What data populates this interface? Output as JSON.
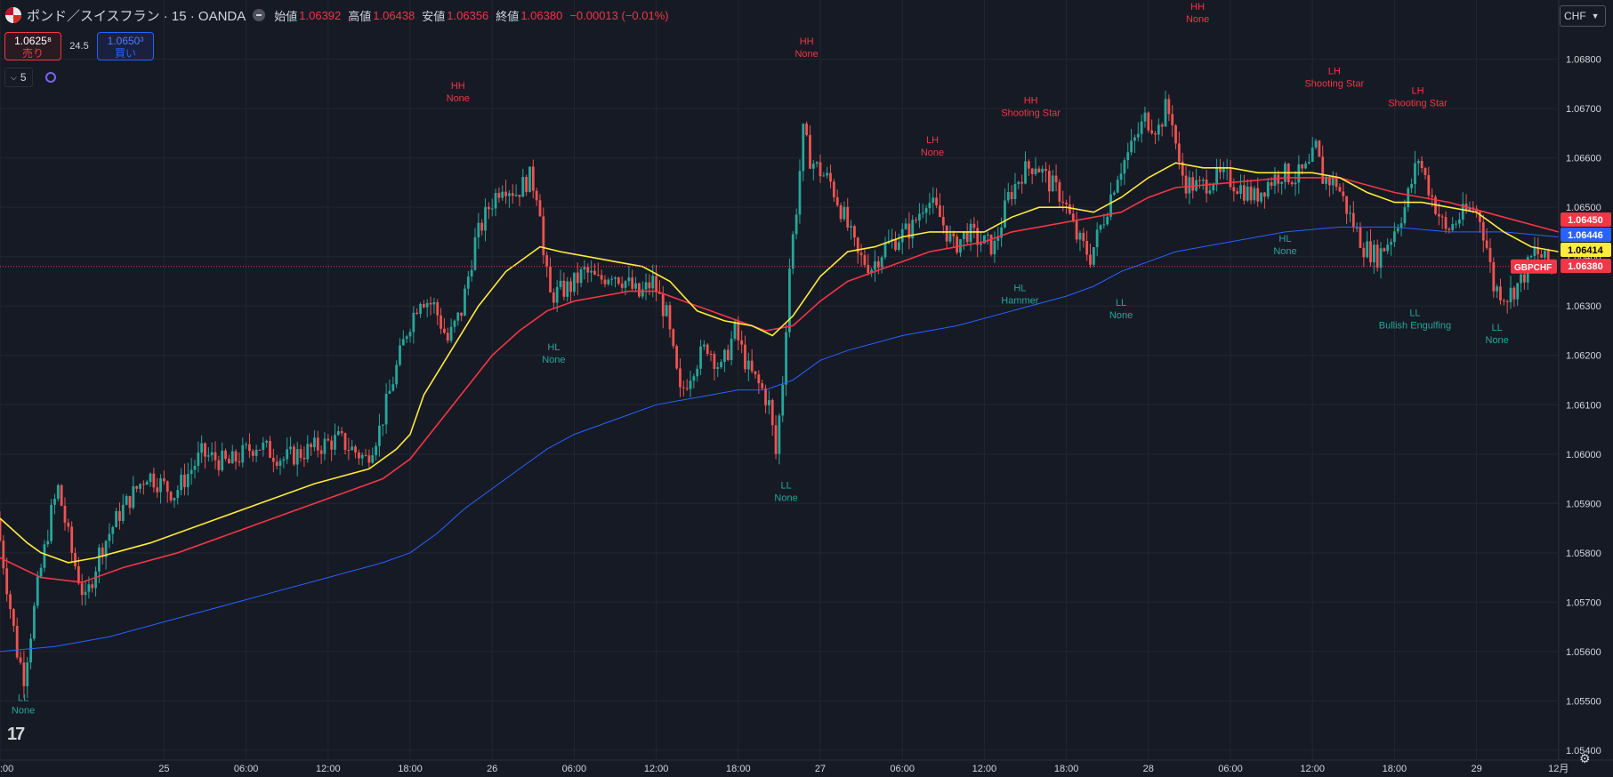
{
  "header": {
    "symbol": "ポンド／スイスフラン · 15 · OANDA",
    "open_label": "始値",
    "open": "1.06392",
    "high_label": "高値",
    "high": "1.06438",
    "low_label": "安値",
    "low": "1.06356",
    "close_label": "終値",
    "close": "1.06380",
    "change": "−0.00013 (−0.01%)"
  },
  "trade": {
    "sell_price": "1.0625⁸",
    "sell_label": "売り",
    "spread": "24.5",
    "buy_price": "1.0650³",
    "buy_label": "買い"
  },
  "indicators": {
    "count": "5"
  },
  "currency": "CHF",
  "colors": {
    "up": "#26a69a",
    "down": "#ef5350",
    "ema_fast": "#ffeb3b",
    "ema_mid": "#f23645",
    "ema_slow": "#2962ff",
    "bg": "#161a25",
    "grid": "#222631"
  },
  "chart_data": {
    "type": "candlestick",
    "symbol_tag": "GBPCHF",
    "ylim": [
      1.0538,
      1.0692
    ],
    "y_ticks": [
      1.054,
      1.055,
      1.056,
      1.057,
      1.058,
      1.059,
      1.06,
      1.061,
      1.062,
      1.063,
      1.064,
      1.065,
      1.066,
      1.067,
      1.068
    ],
    "y_tick_labels": [
      "1.05400",
      "1.05500",
      "1.05600",
      "1.05700",
      "1.05800",
      "1.05900",
      "1.06000",
      "1.06100",
      "1.06200",
      "1.06300",
      "1.06400",
      "1.06500",
      "1.06600",
      "1.06700",
      "1.06800"
    ],
    "x_range_hours": [
      -12,
      99
    ],
    "x_ticks": [
      {
        "h": -12,
        "label": ":00"
      },
      {
        "h": 0,
        "label": "25"
      },
      {
        "h": 6,
        "label": "06:00"
      },
      {
        "h": 12,
        "label": "12:00"
      },
      {
        "h": 18,
        "label": "18:00"
      },
      {
        "h": 24,
        "label": "26"
      },
      {
        "h": 30,
        "label": "06:00"
      },
      {
        "h": 36,
        "label": "12:00"
      },
      {
        "h": 42,
        "label": "18:00"
      },
      {
        "h": 48,
        "label": "27"
      },
      {
        "h": 54,
        "label": "06:00"
      },
      {
        "h": 60,
        "label": "12:00"
      },
      {
        "h": 66,
        "label": "18:00"
      },
      {
        "h": 72,
        "label": "28"
      },
      {
        "h": 78,
        "label": "06:00"
      },
      {
        "h": 84,
        "label": "12:00"
      },
      {
        "h": 90,
        "label": "18:00"
      },
      {
        "h": 96,
        "label": "29"
      },
      {
        "h": 102,
        "label": "12月"
      }
    ],
    "price_path": [
      [
        -12,
        1.0587
      ],
      [
        -11.5,
        1.0578
      ],
      [
        -10.5,
        1.056
      ],
      [
        -10,
        1.0555
      ],
      [
        -9,
        1.0573
      ],
      [
        -8,
        1.0588
      ],
      [
        -7.5,
        1.0593
      ],
      [
        -6.5,
        1.058
      ],
      [
        -5.5,
        1.057
      ],
      [
        -4.5,
        1.058
      ],
      [
        -3,
        1.0588
      ],
      [
        -1,
        1.0596
      ],
      [
        1,
        1.0592
      ],
      [
        3,
        1.06
      ],
      [
        5,
        1.0598
      ],
      [
        7,
        1.0602
      ],
      [
        9,
        1.0599
      ],
      [
        11,
        1.0601
      ],
      [
        13,
        1.0603
      ],
      [
        15,
        1.0599
      ],
      [
        16,
        1.0605
      ],
      [
        17,
        1.0615
      ],
      [
        18,
        1.0625
      ],
      [
        19,
        1.0632
      ],
      [
        20,
        1.063
      ],
      [
        21,
        1.0623
      ],
      [
        22,
        1.0629
      ],
      [
        23,
        1.0643
      ],
      [
        24,
        1.065
      ],
      [
        25,
        1.0655
      ],
      [
        26,
        1.0653
      ],
      [
        27,
        1.0656
      ],
      [
        27.7,
        1.0652
      ],
      [
        28,
        1.064
      ],
      [
        28.5,
        1.0632
      ],
      [
        30,
        1.0634
      ],
      [
        31,
        1.0637
      ],
      [
        32,
        1.0635
      ],
      [
        33,
        1.0637
      ],
      [
        34,
        1.0635
      ],
      [
        35,
        1.0632
      ],
      [
        36,
        1.0635
      ],
      [
        37,
        1.0628
      ],
      [
        38,
        1.0612
      ],
      [
        39,
        1.0618
      ],
      [
        40,
        1.0622
      ],
      [
        41,
        1.0617
      ],
      [
        42,
        1.0625
      ],
      [
        43,
        1.0617
      ],
      [
        44,
        1.0613
      ],
      [
        44.5,
        1.061
      ],
      [
        45,
        1.06
      ],
      [
        45.5,
        1.0615
      ],
      [
        46,
        1.0638
      ],
      [
        46.5,
        1.065
      ],
      [
        47,
        1.0665
      ],
      [
        47.5,
        1.066
      ],
      [
        48,
        1.0658
      ],
      [
        49,
        1.0655
      ],
      [
        50,
        1.0648
      ],
      [
        51,
        1.064
      ],
      [
        52,
        1.0638
      ],
      [
        53,
        1.0642
      ],
      [
        54,
        1.0644
      ],
      [
        55,
        1.0646
      ],
      [
        56,
        1.0652
      ],
      [
        57,
        1.0648
      ],
      [
        58,
        1.0642
      ],
      [
        59,
        1.0645
      ],
      [
        60,
        1.0643
      ],
      [
        61,
        1.0642
      ],
      [
        62,
        1.0652
      ],
      [
        63,
        1.0657
      ],
      [
        64,
        1.0659
      ],
      [
        65,
        1.0655
      ],
      [
        66,
        1.0652
      ],
      [
        67,
        1.0644
      ],
      [
        68,
        1.064
      ],
      [
        69,
        1.0648
      ],
      [
        70,
        1.0657
      ],
      [
        71,
        1.0662
      ],
      [
        72,
        1.0668
      ],
      [
        73,
        1.0666
      ],
      [
        73.5,
        1.067
      ],
      [
        74,
        1.0668
      ],
      [
        74.5,
        1.0658
      ],
      [
        75,
        1.0655
      ],
      [
        76,
        1.0654
      ],
      [
        77,
        1.0656
      ],
      [
        78,
        1.0656
      ],
      [
        79,
        1.0654
      ],
      [
        80,
        1.0652
      ],
      [
        81,
        1.0655
      ],
      [
        82,
        1.0657
      ],
      [
        83,
        1.0656
      ],
      [
        84,
        1.0658
      ],
      [
        84.5,
        1.0662
      ],
      [
        85,
        1.0656
      ],
      [
        86,
        1.0655
      ],
      [
        87,
        1.0648
      ],
      [
        88,
        1.0642
      ],
      [
        89,
        1.064
      ],
      [
        90,
        1.0644
      ],
      [
        91,
        1.065
      ],
      [
        92,
        1.066
      ],
      [
        93,
        1.0652
      ],
      [
        94,
        1.0645
      ],
      [
        95,
        1.0648
      ],
      [
        96,
        1.065
      ],
      [
        96.5,
        1.0648
      ],
      [
        97,
        1.0642
      ],
      [
        97.5,
        1.0634
      ],
      [
        98.5,
        1.0632
      ],
      [
        99.5,
        1.0635
      ],
      [
        100.5,
        1.0641
      ],
      [
        101,
        1.064
      ],
      [
        101.5,
        1.0638
      ]
    ],
    "ema_fast": [
      [
        -12,
        1.0587
      ],
      [
        -10,
        1.0582
      ],
      [
        -9,
        1.058
      ],
      [
        -7,
        1.0578
      ],
      [
        -5,
        1.0579
      ],
      [
        -1,
        1.0582
      ],
      [
        3,
        1.0586
      ],
      [
        7,
        1.059
      ],
      [
        11,
        1.0594
      ],
      [
        15,
        1.0597
      ],
      [
        17,
        1.0601
      ],
      [
        18,
        1.0604
      ],
      [
        19,
        1.0612
      ],
      [
        21,
        1.0621
      ],
      [
        23,
        1.063
      ],
      [
        25,
        1.0637
      ],
      [
        27.5,
        1.0642
      ],
      [
        29,
        1.0641
      ],
      [
        31,
        1.064
      ],
      [
        33,
        1.0639
      ],
      [
        35,
        1.0638
      ],
      [
        37,
        1.0635
      ],
      [
        39,
        1.0629
      ],
      [
        41,
        1.0627
      ],
      [
        43,
        1.0626
      ],
      [
        44.5,
        1.0624
      ],
      [
        46,
        1.0628
      ],
      [
        48,
        1.0636
      ],
      [
        50,
        1.0641
      ],
      [
        52,
        1.0642
      ],
      [
        54,
        1.0644
      ],
      [
        56,
        1.0645
      ],
      [
        58,
        1.0645
      ],
      [
        60,
        1.0645
      ],
      [
        62,
        1.0648
      ],
      [
        64,
        1.065
      ],
      [
        66,
        1.065
      ],
      [
        68,
        1.0649
      ],
      [
        70,
        1.0652
      ],
      [
        72,
        1.0656
      ],
      [
        74,
        1.0659
      ],
      [
        76,
        1.0658
      ],
      [
        78,
        1.0658
      ],
      [
        80,
        1.0657
      ],
      [
        82,
        1.0657
      ],
      [
        84,
        1.0657
      ],
      [
        86,
        1.0656
      ],
      [
        88,
        1.0653
      ],
      [
        90,
        1.0651
      ],
      [
        92,
        1.0651
      ],
      [
        94,
        1.065
      ],
      [
        96,
        1.0649
      ],
      [
        98,
        1.0645
      ],
      [
        100,
        1.0642
      ],
      [
        102,
        1.0641
      ]
    ],
    "ema_mid": [
      [
        -12,
        1.0579
      ],
      [
        -9,
        1.0575
      ],
      [
        -6,
        1.0574
      ],
      [
        -3,
        1.0577
      ],
      [
        1,
        1.058
      ],
      [
        5,
        1.0584
      ],
      [
        9,
        1.0588
      ],
      [
        13,
        1.0592
      ],
      [
        16,
        1.0595
      ],
      [
        18,
        1.0599
      ],
      [
        20,
        1.0606
      ],
      [
        22,
        1.0613
      ],
      [
        24,
        1.062
      ],
      [
        26,
        1.0625
      ],
      [
        28,
        1.0629
      ],
      [
        30,
        1.0631
      ],
      [
        32,
        1.0632
      ],
      [
        34,
        1.0633
      ],
      [
        36,
        1.0633
      ],
      [
        38,
        1.0631
      ],
      [
        40,
        1.0629
      ],
      [
        42,
        1.0627
      ],
      [
        44,
        1.0625
      ],
      [
        46,
        1.0626
      ],
      [
        48,
        1.0631
      ],
      [
        50,
        1.0635
      ],
      [
        52,
        1.0637
      ],
      [
        54,
        1.0639
      ],
      [
        56,
        1.0641
      ],
      [
        58,
        1.0642
      ],
      [
        60,
        1.0643
      ],
      [
        62,
        1.0645
      ],
      [
        64,
        1.0646
      ],
      [
        66,
        1.0647
      ],
      [
        68,
        1.0648
      ],
      [
        70,
        1.0649
      ],
      [
        72,
        1.0652
      ],
      [
        74,
        1.0654
      ],
      [
        78,
        1.0655
      ],
      [
        82,
        1.0656
      ],
      [
        86,
        1.0656
      ],
      [
        90,
        1.0653
      ],
      [
        94,
        1.0651
      ],
      [
        98,
        1.0648
      ],
      [
        102,
        1.0645
      ]
    ],
    "ema_slow": [
      [
        -12,
        1.056
      ],
      [
        -8,
        1.0561
      ],
      [
        -4,
        1.0563
      ],
      [
        0,
        1.0566
      ],
      [
        4,
        1.0569
      ],
      [
        8,
        1.0572
      ],
      [
        12,
        1.0575
      ],
      [
        16,
        1.0578
      ],
      [
        18,
        1.058
      ],
      [
        20,
        1.0584
      ],
      [
        22,
        1.0589
      ],
      [
        24,
        1.0593
      ],
      [
        26,
        1.0597
      ],
      [
        28,
        1.0601
      ],
      [
        30,
        1.0604
      ],
      [
        32,
        1.0606
      ],
      [
        34,
        1.0608
      ],
      [
        36,
        1.061
      ],
      [
        38,
        1.0611
      ],
      [
        40,
        1.0612
      ],
      [
        42,
        1.0613
      ],
      [
        44,
        1.0613
      ],
      [
        46,
        1.0615
      ],
      [
        48,
        1.0619
      ],
      [
        50,
        1.0621
      ],
      [
        54,
        1.0624
      ],
      [
        58,
        1.0626
      ],
      [
        62,
        1.0629
      ],
      [
        66,
        1.0632
      ],
      [
        68,
        1.0634
      ],
      [
        70,
        1.0637
      ],
      [
        72,
        1.0639
      ],
      [
        74,
        1.0641
      ],
      [
        78,
        1.0643
      ],
      [
        82,
        1.0645
      ],
      [
        86,
        1.0646
      ],
      [
        90,
        1.0646
      ],
      [
        94,
        1.0645
      ],
      [
        98,
        1.0645
      ],
      [
        102,
        1.0644
      ]
    ],
    "annotations": [
      {
        "h": -10.3,
        "price": 1.055,
        "line1": "LL",
        "line2": "None",
        "type": "low"
      },
      {
        "h": 21.5,
        "price": 1.0674,
        "line1": "HH",
        "line2": "None",
        "type": "high"
      },
      {
        "h": 28.5,
        "price": 1.0621,
        "line1": "HL",
        "line2": "None",
        "type": "low"
      },
      {
        "h": 45.5,
        "price": 1.0593,
        "line1": "LL",
        "line2": "None",
        "type": "low"
      },
      {
        "h": 47,
        "price": 1.0683,
        "line1": "HH",
        "line2": "None",
        "type": "high"
      },
      {
        "h": 56.2,
        "price": 1.0663,
        "line1": "LH",
        "line2": "None",
        "type": "high"
      },
      {
        "h": 62.6,
        "price": 1.0633,
        "line1": "HL",
        "line2": "Hammer",
        "type": "low"
      },
      {
        "h": 63.4,
        "price": 1.0671,
        "line1": "HH",
        "line2": "Shooting Star",
        "type": "high"
      },
      {
        "h": 70,
        "price": 1.063,
        "line1": "LL",
        "line2": "None",
        "type": "low"
      },
      {
        "h": 75.6,
        "price": 1.069,
        "line1": "HH",
        "line2": "None",
        "type": "high"
      },
      {
        "h": 82,
        "price": 1.0643,
        "line1": "HL",
        "line2": "None",
        "type": "low"
      },
      {
        "h": 85.6,
        "price": 1.0677,
        "line1": "LH",
        "line2": "Shooting Star",
        "type": "high"
      },
      {
        "h": 91.5,
        "price": 1.0628,
        "line1": "LL",
        "line2": "Bullish Engulfing",
        "type": "low"
      },
      {
        "h": 91.7,
        "price": 1.0673,
        "line1": "LH",
        "line2": "Shooting Star",
        "type": "high"
      },
      {
        "h": 97.5,
        "price": 1.0625,
        "line1": "LL",
        "line2": "None",
        "type": "low"
      }
    ],
    "price_tags": [
      {
        "price": 1.0645,
        "label": "1.06450",
        "color": "#f23645",
        "text_color": "#ffffff"
      },
      {
        "price": 1.06446,
        "label": "1.06446",
        "color": "#2962ff",
        "text_color": "#ffffff"
      },
      {
        "price": 1.06414,
        "label": "1.06414",
        "color": "#ffeb3b",
        "text_color": "#000000"
      },
      {
        "price": 1.0638,
        "label": "1.06380",
        "color": "#f23645",
        "text_color": "#ffffff"
      }
    ],
    "last_price": 1.0638
  }
}
